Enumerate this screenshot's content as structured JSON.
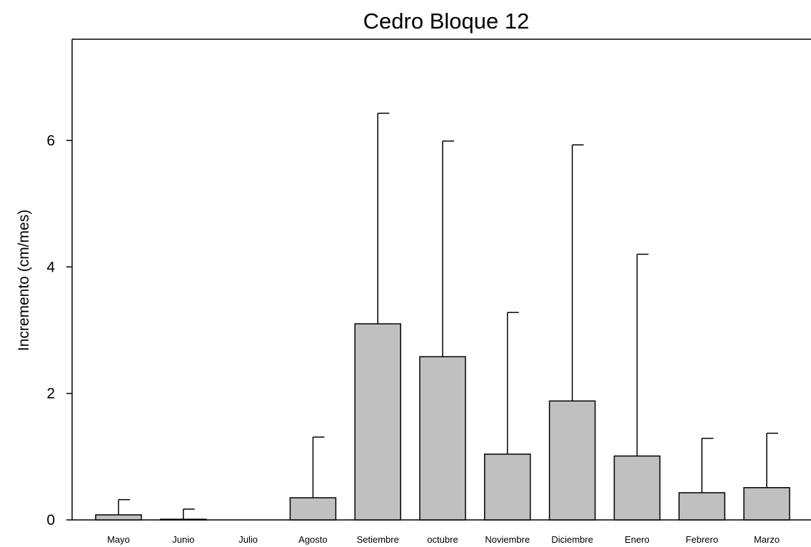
{
  "chart_data": {
    "type": "bar",
    "title": "Cedro Bloque 12",
    "xlabel": "",
    "ylabel": "Incremento (cm/mes)",
    "categories": [
      "Mayo",
      "Junio",
      "Julio",
      "Agosto",
      "Setiembre",
      "octubre",
      "Noviembre",
      "Diciembre",
      "Enero",
      "Febrero",
      "Marzo"
    ],
    "values": [
      0.08,
      0.01,
      0.0,
      0.35,
      3.1,
      2.58,
      1.04,
      1.88,
      1.01,
      0.43,
      0.51
    ],
    "error_upper": [
      0.32,
      0.17,
      0.0,
      1.31,
      6.43,
      5.99,
      3.28,
      5.93,
      4.2,
      1.29,
      1.37
    ],
    "ylim": [
      0,
      7.6
    ],
    "yticks": [
      "0",
      "2",
      "4",
      "6"
    ],
    "grid": false,
    "bar_color": "#c0c0c0",
    "edge_color": "#000000"
  }
}
